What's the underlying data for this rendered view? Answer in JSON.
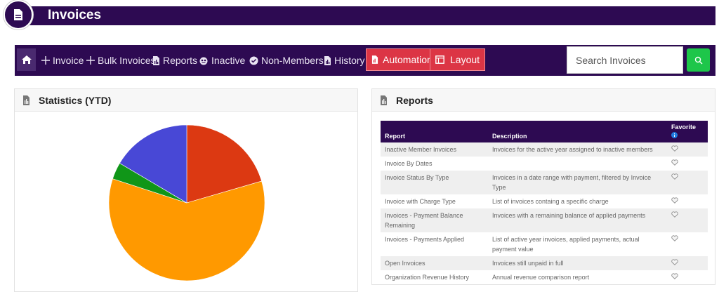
{
  "header": {
    "title": "Invoices"
  },
  "nav": {
    "items": [
      {
        "label": "Invoice",
        "icon": "plus-icon"
      },
      {
        "label": "Bulk Invoices",
        "icon": "plus-icon"
      },
      {
        "label": "Reports",
        "icon": "report-icon"
      },
      {
        "label": "Inactive",
        "icon": "inactive-icon"
      },
      {
        "label": "Non-Members",
        "icon": "check-circle-icon"
      },
      {
        "label": "History",
        "icon": "report-icon"
      }
    ],
    "automation_label": "Automation",
    "layout_label": "Layout",
    "search_placeholder": "Search Invoices"
  },
  "stats": {
    "title": "Statistics (YTD)"
  },
  "chart_data": {
    "type": "pie",
    "title": "",
    "slices": [
      {
        "value": 20.5,
        "color": "#dc3912"
      },
      {
        "value": 59.5,
        "color": "#ff9900"
      },
      {
        "value": 3.5,
        "color": "#109618"
      },
      {
        "value": 16.5,
        "color": "#4848d6"
      }
    ]
  },
  "reports": {
    "title": "Reports",
    "columns": {
      "report": "Report",
      "description": "Description",
      "favorite": "Favorite"
    },
    "rows": [
      {
        "report": "Inactive Member Invoices",
        "description": "Invoices for the active year assigned to inactive members"
      },
      {
        "report": "Invoice By Dates",
        "description": ""
      },
      {
        "report": "Invoice Status By Type",
        "description": "Invoices in a date range with payment, filtered by Invoice Type"
      },
      {
        "report": "Invoice with Charge Type",
        "description": "List of invoices containg a specific charge"
      },
      {
        "report": "Invoices - Payment Balance Remaining",
        "description": "Invoices with a remaining balance of applied payments"
      },
      {
        "report": "Invoices - Payments Applied",
        "description": "List of active year invoices, applied payments, actual payment value"
      },
      {
        "report": "Open Invoices",
        "description": "Invoices still unpaid in full"
      },
      {
        "report": "Organization Revenue History",
        "description": "Annual revenue comparison report"
      }
    ]
  }
}
